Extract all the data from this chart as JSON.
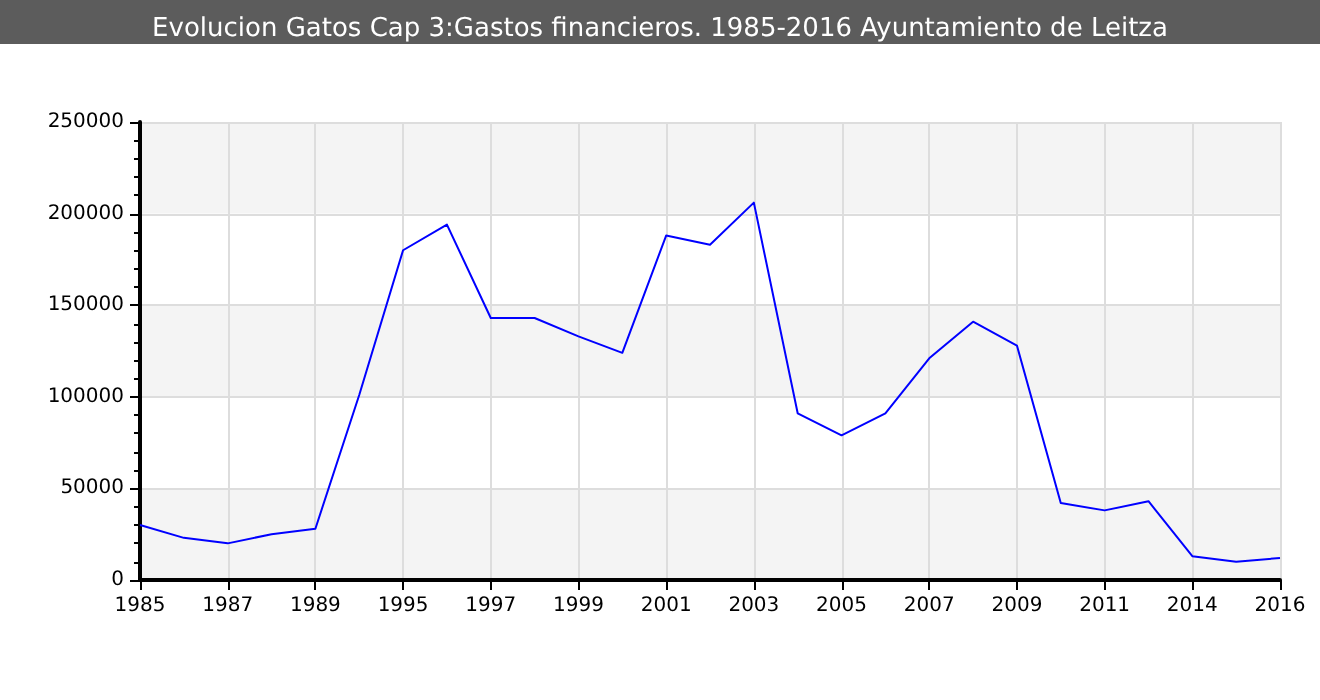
{
  "chart_data": {
    "type": "line",
    "title": "Evolucion Gatos Cap 3:Gastos financieros. 1985-2016 Ayuntamiento de Leitza",
    "categories": [
      "1985",
      null,
      "1987",
      null,
      "1989",
      null,
      "1995",
      null,
      "1997",
      null,
      "1999",
      null,
      "2001",
      null,
      "2003",
      null,
      "2005",
      null,
      "2007",
      null,
      "2009",
      null,
      "2011",
      null,
      "2014",
      null,
      "2016"
    ],
    "series": [
      {
        "color": "#0000ff",
        "values": [
          30000,
          23000,
          20000,
          25000,
          28000,
          101000,
          180000,
          194000,
          143000,
          143000,
          133000,
          124000,
          188000,
          183000,
          206000,
          91000,
          79000,
          91000,
          121000,
          141000,
          128000,
          42000,
          38000,
          43000,
          13000,
          10000,
          12000
        ]
      }
    ],
    "ylim": [
      0,
      250000
    ],
    "yticks": [
      0,
      50000,
      100000,
      150000,
      200000,
      250000
    ],
    "grid": true,
    "marker": "none",
    "line_style": "solid"
  }
}
